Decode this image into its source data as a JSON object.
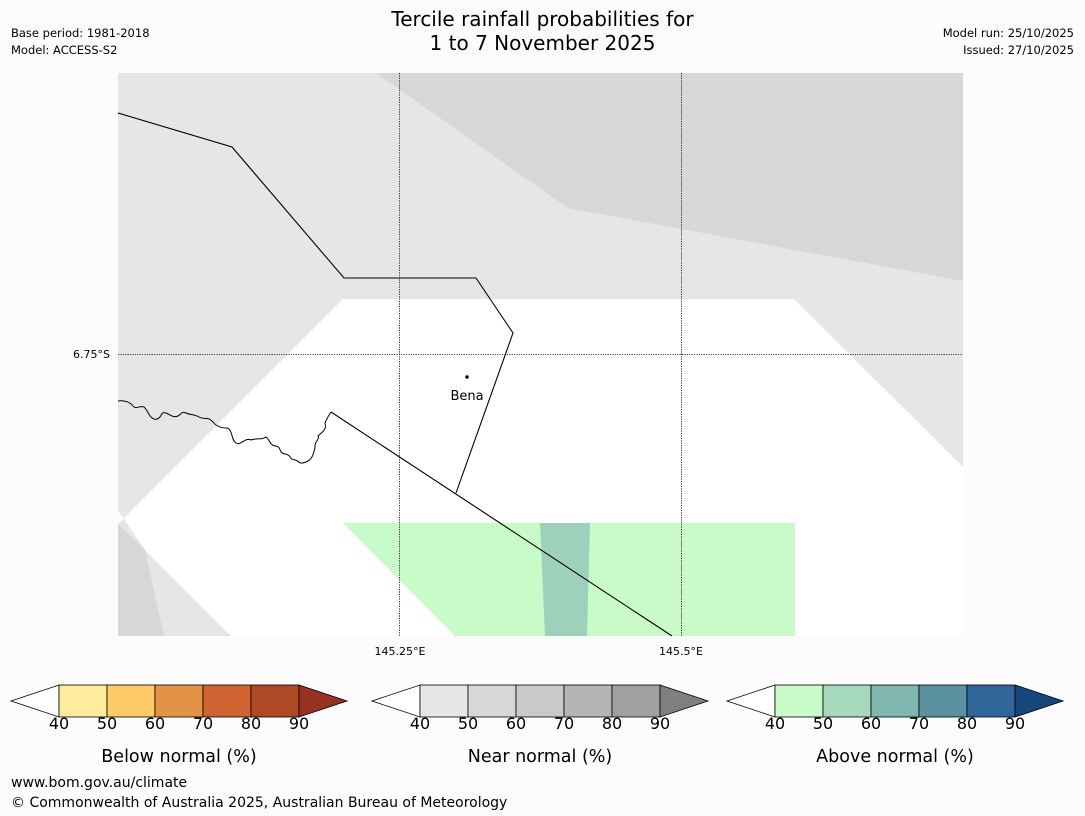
{
  "header": {
    "title_line1": "Tercile rainfall probabilities for",
    "title_line2": "1 to 7 November 2025",
    "base_period": "Base period: 1981-2018",
    "model": "Model: ACCESS-S2",
    "model_run": "Model run: 25/10/2025",
    "issued": "Issued: 27/10/2025"
  },
  "map": {
    "lat_label": "6.75°S",
    "lon_labels": [
      "145.25°E",
      "145.5°E"
    ],
    "place_name": "Bena",
    "colors": {
      "near_normal_light": "#e6e6e6",
      "near_normal_mid": "#d7d7d7",
      "above_normal_light": "#c8fbc8",
      "above_normal_mid": "#9ed1bb",
      "no_signal": "#ffffff"
    }
  },
  "colorbars": {
    "ticks": [
      "40",
      "50",
      "60",
      "70",
      "80",
      "90"
    ],
    "below": {
      "label": "Below normal (%)",
      "colors": [
        "#ffffff",
        "#ffeb9e",
        "#ffcb66",
        "#e29345",
        "#cf6432",
        "#ad4924",
        "#963320"
      ]
    },
    "near": {
      "label": "Near normal (%)",
      "colors": [
        "#ffffff",
        "#e6e6e6",
        "#d7d7d7",
        "#c9c9c9",
        "#b5b5b5",
        "#a0a0a0",
        "#7f7f7f"
      ]
    },
    "above": {
      "label": "Above normal (%)",
      "colors": [
        "#ffffff",
        "#c8fbc8",
        "#a6d8bc",
        "#7fb6ae",
        "#5b91a0",
        "#30669a",
        "#16477c"
      ]
    }
  },
  "footer": {
    "website": "www.bom.gov.au/climate",
    "copyright": "© Commonwealth of Australia 2025, Australian Bureau of Meteorology"
  }
}
